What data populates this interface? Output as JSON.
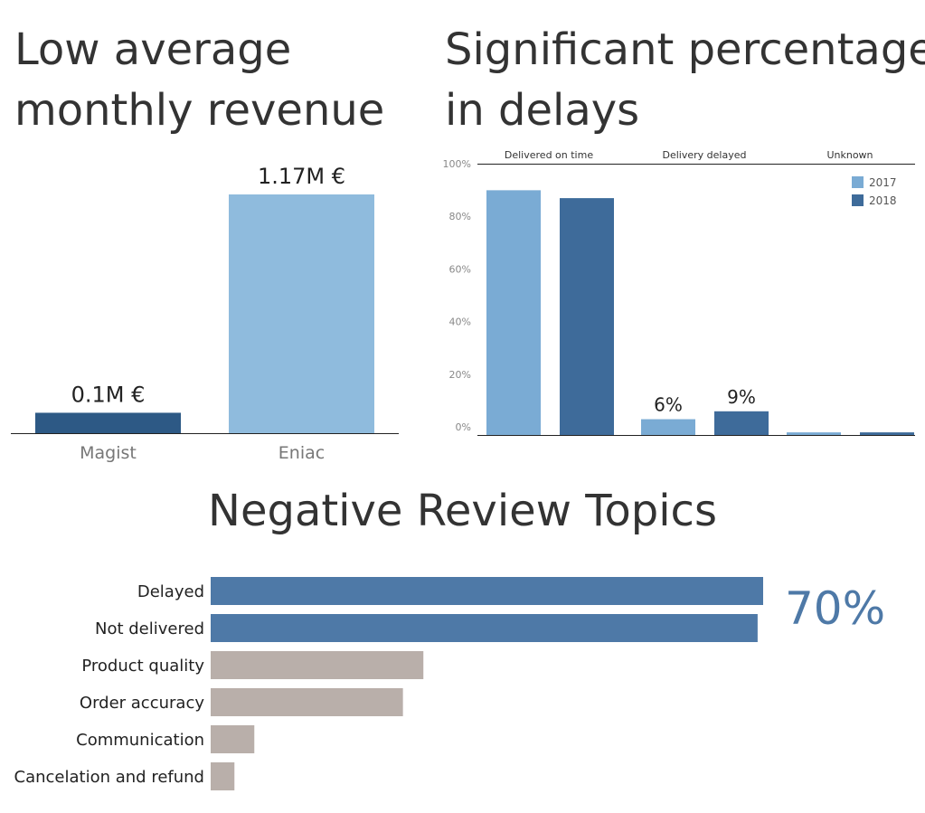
{
  "colors": {
    "magist": "#2d5985",
    "eniac": "#8fbbdd",
    "y2017": "#7aabd4",
    "y2018": "#3e6b9a",
    "topic_highlight": "#4e79a7",
    "topic_other": "#b9afaa",
    "callout": "#4e79a7"
  },
  "panels": {
    "revenue_title": "Low average monthly revenue",
    "delays_title": "Significant percentage in delays",
    "topics_title": "Negative Review Topics",
    "topics_callout": "70%"
  },
  "chart_data": [
    {
      "type": "bar",
      "title": "Low average monthly revenue",
      "categories": [
        "Magist",
        "Eniac"
      ],
      "values": [
        0.1,
        1.17
      ],
      "data_labels": [
        "0.1M €",
        "1.17M €"
      ],
      "unit": "M €",
      "ylim": [
        0,
        1.17
      ],
      "grid": false
    },
    {
      "type": "bar",
      "title": "Significant percentage in delays",
      "categories": [
        "Delivered on time",
        "Delivery delayed",
        "Unknown"
      ],
      "series": [
        {
          "name": "2017",
          "values": [
            0.93,
            0.06,
            0.01
          ]
        },
        {
          "name": "2018",
          "values": [
            0.9,
            0.09,
            0.01
          ]
        }
      ],
      "data_labels": [
        {
          "category": "Delivery delayed",
          "series": "2017",
          "text": "6%"
        },
        {
          "category": "Delivery delayed",
          "series": "2018",
          "text": "9%"
        }
      ],
      "yticks": [
        "0%",
        "20%",
        "40%",
        "60%",
        "80%",
        "100%"
      ],
      "ylim": [
        0,
        1
      ],
      "legend": "top-right",
      "grid": false
    },
    {
      "type": "bar",
      "orientation": "horizontal",
      "title": "Negative Review Topics",
      "categories": [
        "Delayed",
        "Not delivered",
        "Product quality",
        "Order accuracy",
        "Communication",
        "Cancelation and refund"
      ],
      "values": [
        100,
        99,
        38.5,
        34.8,
        7.9,
        4.3
      ],
      "highlighted": [
        "Delayed",
        "Not delivered"
      ],
      "annotation": "70%",
      "xlim": [
        0,
        100
      ],
      "grid": false
    }
  ]
}
